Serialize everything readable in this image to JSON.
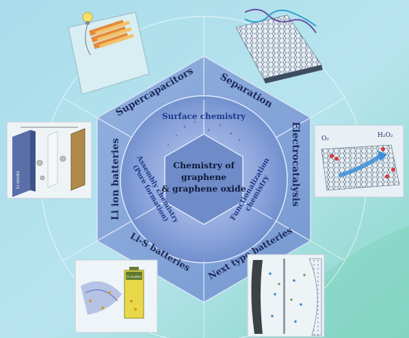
{
  "center": {
    "line1": "Chemistry of",
    "line2": "graphene",
    "line3": "& graphene oxide"
  },
  "inner_ring": {
    "top": "Surface chemistry",
    "left_line1": "Assembly chemistry",
    "left_line2": "(Pore formation)",
    "right_line1": "Functionalization",
    "right_line2": "chemistry"
  },
  "outer_ring": {
    "supercapacitors": "Supercapacitors",
    "separation": "Separation",
    "electrocatalysis": "Electrocatalysis",
    "next_type_batteries": "Next type batteries",
    "li_s_batteries": "Li-S batteries",
    "li_ion_batteries": "Li ion batteries"
  },
  "illustrations": {
    "li_anode_label": "Li anode",
    "o2_label": "O₂",
    "h2o2_label": "H₂O₂",
    "li_sulfur_label": "Li-Sulfur"
  },
  "colors": {
    "background_left": "#a7dbe8",
    "background_right": "#8fd8c8",
    "hex_fill": "#7e9fd0",
    "text_dark": "#1c2a5a",
    "center_text": "#0e1838"
  }
}
